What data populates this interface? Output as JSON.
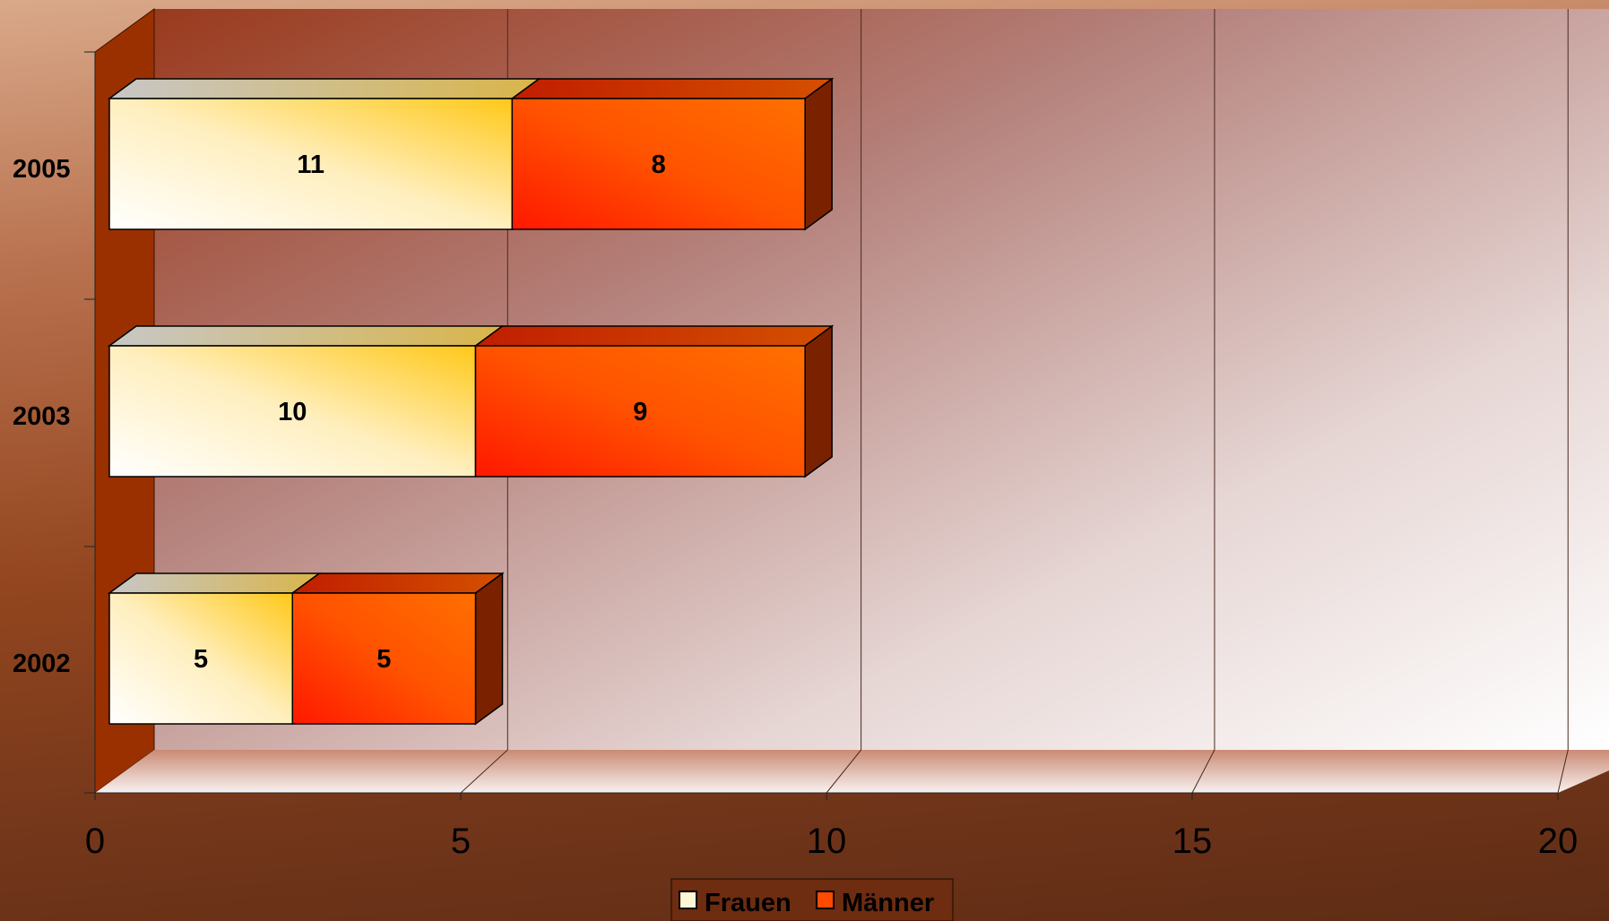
{
  "chart_data": {
    "type": "bar",
    "orientation": "horizontal",
    "stacked": true,
    "three_d": true,
    "categories": [
      "2002",
      "2003",
      "2005"
    ],
    "series": [
      {
        "name": "Frauen",
        "values": [
          5,
          10,
          11
        ],
        "color": "#ffd040"
      },
      {
        "name": "Männer",
        "values": [
          5,
          9,
          8
        ],
        "color": "#ff4a00"
      }
    ],
    "x_ticks": [
      "0",
      "5",
      "10",
      "15",
      "20"
    ],
    "xlim": [
      0,
      20
    ],
    "grid": true,
    "legend_position": "bottom"
  }
}
